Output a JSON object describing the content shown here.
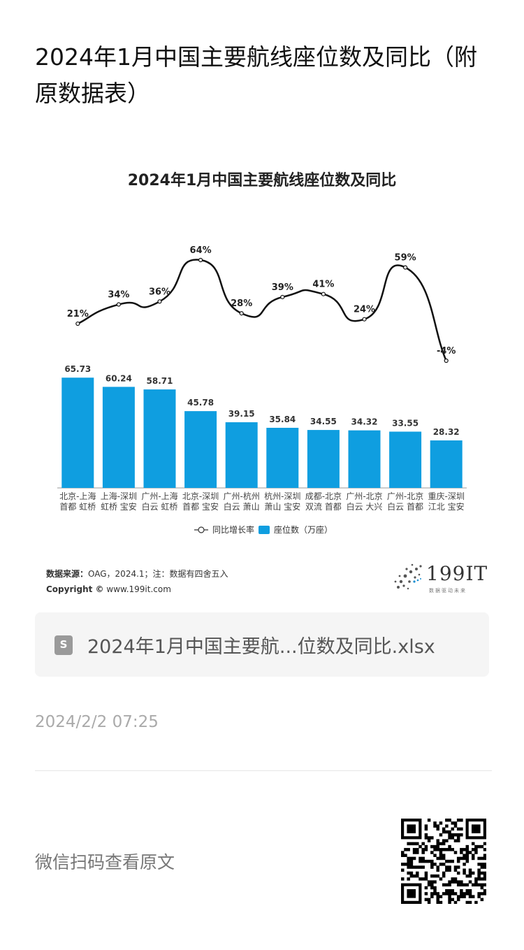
{
  "page": {
    "title": "2024年1月中国主要航线座位数及同比（附原数据表）"
  },
  "chart_data": {
    "type": "bar",
    "title": "2024年1月中国主要航线座位数及同比",
    "categories": [
      [
        "北京-上海",
        "首都 虹桥"
      ],
      [
        "上海-深圳",
        "虹桥 宝安"
      ],
      [
        "广州-上海",
        "白云 虹桥"
      ],
      [
        "北京-深圳",
        "首都 宝安"
      ],
      [
        "广州-杭州",
        "白云 萧山"
      ],
      [
        "杭州-深圳",
        "萧山 宝安"
      ],
      [
        "成都-北京",
        "双流 首都"
      ],
      [
        "广州-北京",
        "白云 大兴"
      ],
      [
        "广州-北京",
        "白云 首都"
      ],
      [
        "重庆-深圳",
        "江北 宝安"
      ]
    ],
    "series": [
      {
        "name": "座位数（万座）",
        "type": "bar",
        "color": "#0f9ee0",
        "values": [
          65.73,
          60.24,
          58.71,
          45.78,
          39.15,
          35.84,
          34.55,
          34.32,
          33.55,
          28.32
        ],
        "labels": [
          "65.73",
          "60.24",
          "58.71",
          "45.78",
          "39.15",
          "35.84",
          "34.55",
          "34.32",
          "33.55",
          "28.32"
        ]
      },
      {
        "name": "同比增长率",
        "type": "line",
        "color": "#111111",
        "values": [
          21,
          34,
          36,
          64,
          28,
          39,
          41,
          24,
          59,
          -4
        ],
        "labels": [
          "21%",
          "34%",
          "36%",
          "64%",
          "28%",
          "39%",
          "41%",
          "24%",
          "59%",
          "-4%"
        ]
      }
    ],
    "legend": {
      "position": "bottom",
      "line_label": "同比增长率",
      "bar_label": "座位数（万座）"
    }
  },
  "footer": {
    "source_label": "数据来源：",
    "source_text": "OAG，2024.1；注：数据有四舍五入",
    "copyright_label": "Copyright ©",
    "copyright_text": "www.199it.com",
    "logo_text": "199IT",
    "logo_sub": "数据驱动未来"
  },
  "attachment": {
    "icon": "spreadsheet-file-icon",
    "icon_glyph": "S",
    "file_name": "2024年1月中国主要航...位数及同比.xlsx"
  },
  "post": {
    "timestamp": "2024/2/2 07:25",
    "scan_text": "微信扫码查看原文"
  }
}
